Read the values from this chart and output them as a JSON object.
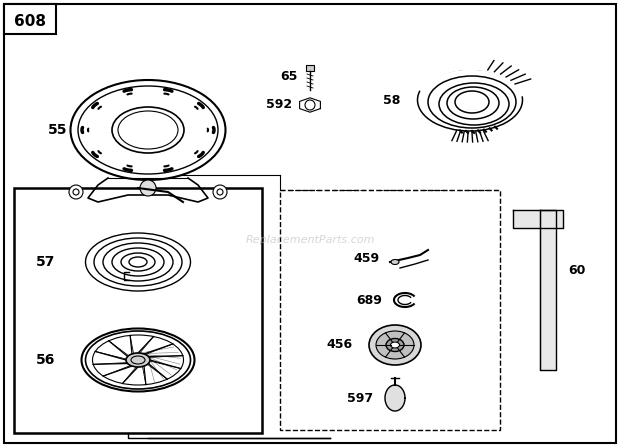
{
  "bg_color": "#ffffff",
  "diagram_number": "608",
  "watermark": "ReplacementParts.com",
  "fig_w": 6.2,
  "fig_h": 4.47,
  "dpi": 100
}
